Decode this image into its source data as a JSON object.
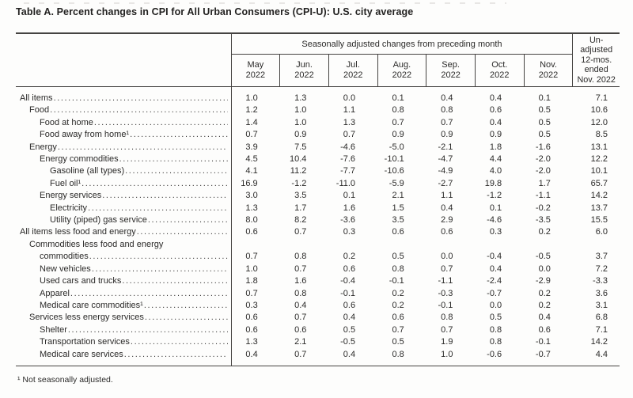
{
  "title": "Table A. Percent changes in CPI for All Urban Consumers (CPI-U): U.S. city average",
  "footnote": "¹ Not seasonally adjusted.",
  "colors": {
    "text": "#2b2a29",
    "border": "#454341",
    "background": "#fdfdfc"
  },
  "table": {
    "group_header": "Seasonally adjusted changes from preceding month",
    "month_headers": [
      "May\n2022",
      "Jun.\n2022",
      "Jul.\n2022",
      "Aug.\n2022",
      "Sep.\n2022",
      "Oct.\n2022",
      "Nov.\n2022"
    ],
    "unadjusted_header": "Un-\nadjusted\n12-mos.\nended\nNov. 2022",
    "rows": [
      {
        "label": "All items",
        "indent": 0,
        "values": [
          "1.0",
          "1.3",
          "0.0",
          "0.1",
          "0.4",
          "0.4",
          "0.1",
          "7.1"
        ]
      },
      {
        "label": "Food",
        "indent": 1,
        "values": [
          "1.2",
          "1.0",
          "1.1",
          "0.8",
          "0.8",
          "0.6",
          "0.5",
          "10.6"
        ]
      },
      {
        "label": "Food at home",
        "indent": 2,
        "values": [
          "1.4",
          "1.0",
          "1.3",
          "0.7",
          "0.7",
          "0.4",
          "0.5",
          "12.0"
        ]
      },
      {
        "label": "Food away from home¹",
        "indent": 2,
        "values": [
          "0.7",
          "0.9",
          "0.7",
          "0.9",
          "0.9",
          "0.9",
          "0.5",
          "8.5"
        ]
      },
      {
        "label": "Energy",
        "indent": 1,
        "values": [
          "3.9",
          "7.5",
          "-4.6",
          "-5.0",
          "-2.1",
          "1.8",
          "-1.6",
          "13.1"
        ]
      },
      {
        "label": "Energy commodities",
        "indent": 2,
        "values": [
          "4.5",
          "10.4",
          "-7.6",
          "-10.1",
          "-4.7",
          "4.4",
          "-2.0",
          "12.2"
        ]
      },
      {
        "label": "Gasoline (all types)",
        "indent": 3,
        "values": [
          "4.1",
          "11.2",
          "-7.7",
          "-10.6",
          "-4.9",
          "4.0",
          "-2.0",
          "10.1"
        ]
      },
      {
        "label": "Fuel oil¹",
        "indent": 3,
        "values": [
          "16.9",
          "-1.2",
          "-11.0",
          "-5.9",
          "-2.7",
          "19.8",
          "1.7",
          "65.7"
        ]
      },
      {
        "label": "Energy services",
        "indent": 2,
        "values": [
          "3.0",
          "3.5",
          "0.1",
          "2.1",
          "1.1",
          "-1.2",
          "-1.1",
          "14.2"
        ]
      },
      {
        "label": "Electricity",
        "indent": 3,
        "values": [
          "1.3",
          "1.7",
          "1.6",
          "1.5",
          "0.4",
          "0.1",
          "-0.2",
          "13.7"
        ]
      },
      {
        "label": "Utility (piped) gas service",
        "indent": 3,
        "values": [
          "8.0",
          "8.2",
          "-3.6",
          "3.5",
          "2.9",
          "-4.6",
          "-3.5",
          "15.5"
        ]
      },
      {
        "label": "All items less food and energy",
        "indent": 0,
        "values": [
          "0.6",
          "0.7",
          "0.3",
          "0.6",
          "0.6",
          "0.3",
          "0.2",
          "6.0"
        ]
      },
      {
        "label": "Commodities less food and energy",
        "label2": "commodities",
        "indent": 1,
        "values": [
          "0.7",
          "0.8",
          "0.2",
          "0.5",
          "0.0",
          "-0.4",
          "-0.5",
          "3.7"
        ]
      },
      {
        "label": "New vehicles",
        "indent": 2,
        "values": [
          "1.0",
          "0.7",
          "0.6",
          "0.8",
          "0.7",
          "0.4",
          "0.0",
          "7.2"
        ]
      },
      {
        "label": "Used cars and trucks",
        "indent": 2,
        "values": [
          "1.8",
          "1.6",
          "-0.4",
          "-0.1",
          "-1.1",
          "-2.4",
          "-2.9",
          "-3.3"
        ]
      },
      {
        "label": "Apparel",
        "indent": 2,
        "values": [
          "0.7",
          "0.8",
          "-0.1",
          "0.2",
          "-0.3",
          "-0.7",
          "0.2",
          "3.6"
        ]
      },
      {
        "label": "Medical care commodities¹",
        "indent": 2,
        "values": [
          "0.3",
          "0.4",
          "0.6",
          "0.2",
          "-0.1",
          "0.0",
          "0.2",
          "3.1"
        ]
      },
      {
        "label": "Services less energy services",
        "indent": 1,
        "values": [
          "0.6",
          "0.7",
          "0.4",
          "0.6",
          "0.8",
          "0.5",
          "0.4",
          "6.8"
        ]
      },
      {
        "label": "Shelter",
        "indent": 2,
        "values": [
          "0.6",
          "0.6",
          "0.5",
          "0.7",
          "0.7",
          "0.8",
          "0.6",
          "7.1"
        ]
      },
      {
        "label": "Transportation services",
        "indent": 2,
        "values": [
          "1.3",
          "2.1",
          "-0.5",
          "0.5",
          "1.9",
          "0.8",
          "-0.1",
          "14.2"
        ]
      },
      {
        "label": "Medical care services",
        "indent": 2,
        "values": [
          "0.4",
          "0.7",
          "0.4",
          "0.8",
          "1.0",
          "-0.6",
          "-0.7",
          "4.4"
        ]
      }
    ]
  }
}
